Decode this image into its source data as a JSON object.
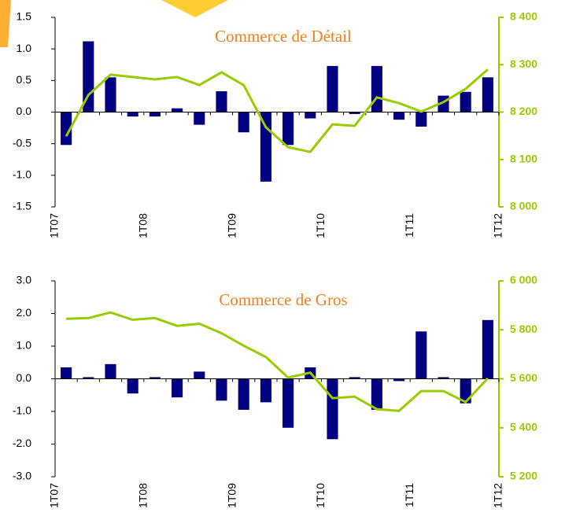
{
  "chart_data": [
    {
      "type": "bar_line",
      "title": "Commerce de Détail",
      "categories": [
        "1T07",
        null,
        null,
        null,
        "1T08",
        null,
        null,
        null,
        "1T09",
        null,
        null,
        null,
        "1T10",
        null,
        null,
        null,
        "1T11",
        null,
        null,
        null
      ],
      "xtick_labels": [
        {
          "value": 0,
          "label": "1T07"
        },
        {
          "value": 4,
          "label": "1T08"
        },
        {
          "value": 8,
          "label": "1T09"
        },
        {
          "value": 12,
          "label": "1T10"
        },
        {
          "value": 16,
          "label": "1T11"
        },
        {
          "value": 20,
          "label": "1T12"
        }
      ],
      "series": [
        {
          "type": "bar",
          "color": "#000080",
          "values": [
            -0.52,
            1.12,
            0.55,
            -0.07,
            -0.07,
            0.06,
            -0.2,
            0.33,
            -0.32,
            -1.1,
            -0.52,
            -0.1,
            0.73,
            -0.03,
            0.73,
            -0.12,
            -0.23,
            0.26,
            0.32,
            0.55
          ]
        },
        {
          "type": "line",
          "axis": "y2",
          "color": "#99cc00",
          "values": [
            8149,
            8236,
            8279,
            8274,
            8269,
            8274,
            8257,
            8284,
            8257,
            8168,
            8126,
            8116,
            8174,
            8171,
            8231,
            8219,
            8201,
            8221,
            8249,
            8290
          ]
        }
      ],
      "ylim": [
        -1.5,
        1.5
      ],
      "yticks": [
        -1.5,
        {
          "value": -1,
          "label": "-1.0"
        },
        -0.5,
        {
          "value": 0,
          "label": "0.0"
        },
        0.5,
        {
          "value": 1,
          "label": "1.0"
        },
        1.5
      ],
      "y2lim": [
        8000,
        8400
      ],
      "y2ticks": [
        {
          "value": 8000,
          "label": "8 000"
        },
        {
          "value": 8100,
          "label": "8 100"
        },
        {
          "value": 8200,
          "label": "8 200"
        },
        {
          "value": 8300,
          "label": "8 300"
        },
        {
          "value": 8400,
          "label": "8 400"
        }
      ]
    },
    {
      "type": "bar_line",
      "title": "Commerce de Gros",
      "categories": [
        "1T07",
        null,
        null,
        null,
        "1T08",
        null,
        null,
        null,
        "1T09",
        null,
        null,
        null,
        "1T10",
        null,
        null,
        null,
        "1T11",
        null,
        null,
        null
      ],
      "xtick_labels": [
        {
          "value": 0,
          "label": "1T07"
        },
        {
          "value": 4,
          "label": "1T08"
        },
        {
          "value": 8,
          "label": "1T09"
        },
        {
          "value": 12,
          "label": "1T10"
        },
        {
          "value": 16,
          "label": "1T11"
        },
        {
          "value": 20,
          "label": "1T12"
        }
      ],
      "series": [
        {
          "type": "bar",
          "color": "#000080",
          "values": [
            0.35,
            0.05,
            0.45,
            -0.45,
            0.05,
            -0.57,
            0.22,
            -0.67,
            -0.95,
            -0.72,
            -1.5,
            0.35,
            -1.85,
            0.05,
            -0.95,
            -0.07,
            1.45,
            0.05,
            -0.75,
            1.8
          ]
        },
        {
          "type": "line",
          "axis": "y2",
          "color": "#99cc00",
          "values": [
            5845,
            5848,
            5871,
            5841,
            5848,
            5816,
            5825,
            5786,
            5735,
            5689,
            5605,
            5625,
            5521,
            5527,
            5476,
            5469,
            5550,
            5550,
            5505,
            5602
          ]
        }
      ],
      "ylim": [
        -3,
        3
      ],
      "yticks": [
        {
          "value": -3,
          "label": "-3.0"
        },
        {
          "value": -2,
          "label": "-2.0"
        },
        {
          "value": -1,
          "label": "-1.0"
        },
        {
          "value": 0,
          "label": "0.0"
        },
        {
          "value": 1,
          "label": "1.0"
        },
        {
          "value": 2,
          "label": "2.0"
        },
        {
          "value": 3,
          "label": "3.0"
        }
      ],
      "y2lim": [
        5200,
        6000
      ],
      "y2ticks": [
        {
          "value": 5200,
          "label": "5 200"
        },
        {
          "value": 5400,
          "label": "5 400"
        },
        {
          "value": 5600,
          "label": "5 600"
        },
        {
          "value": 5800,
          "label": "5 800"
        },
        {
          "value": 6000,
          "label": "6 000"
        }
      ]
    }
  ]
}
